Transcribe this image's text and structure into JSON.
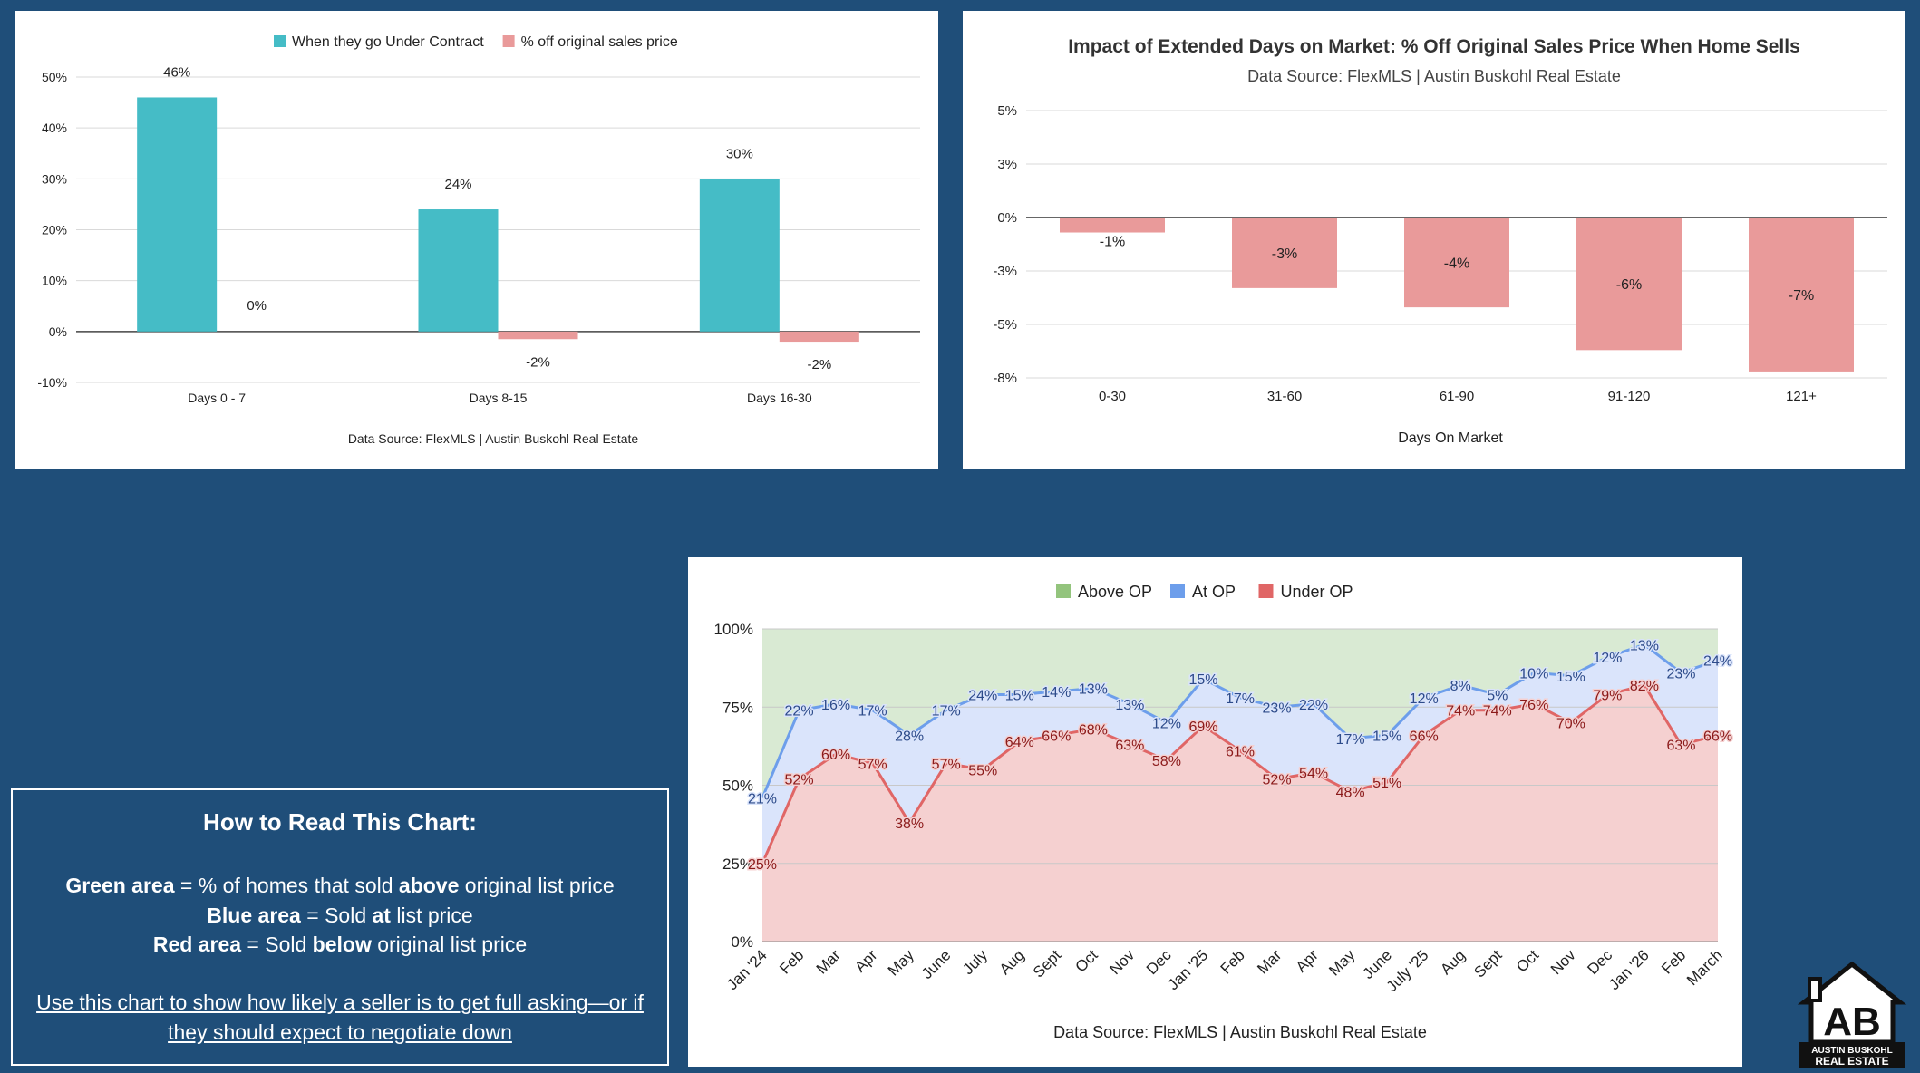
{
  "chart_data": [
    {
      "type": "bar",
      "title": "",
      "legend": [
        "When they go Under Contract",
        "% off original sales price"
      ],
      "legend_position": "top",
      "categories": [
        "Days 0 - 7",
        "Days 8-15",
        "Days 16-30"
      ],
      "series": [
        {
          "name": "When they go Under Contract",
          "values": [
            46,
            24,
            30
          ],
          "labels": [
            "46%",
            "24%",
            "30%"
          ],
          "color": "#45bcc6"
        },
        {
          "name": "% off original sales price",
          "values": [
            0,
            -1.5,
            -2
          ],
          "labels": [
            "0%",
            "-2%",
            "-2%"
          ],
          "color": "#e99a9a"
        }
      ],
      "yticks": [
        "50%",
        "40%",
        "30%",
        "20%",
        "10%",
        "0%",
        "-10%"
      ],
      "ylim": [
        -10,
        50
      ],
      "grid": true,
      "source": "Data Source: FlexMLS | Austin Buskohl Real Estate"
    },
    {
      "type": "bar",
      "title": "Impact of Extended Days on Market: % Off Original Sales Price When Home Sells",
      "subtitle": "Data Source: FlexMLS | Austin Buskohl Real Estate",
      "xlabel": "Days On Market",
      "categories": [
        "0-30",
        "31-60",
        "61-90",
        "91-120",
        "121+"
      ],
      "values": [
        -0.7,
        -3.3,
        -4.2,
        -6.2,
        -7.2
      ],
      "labels": [
        "-1%",
        "-3%",
        "-4%",
        "-6%",
        "-7%"
      ],
      "color": "#e99a9a",
      "yticks": [
        "5%",
        "3%",
        "0%",
        "-3%",
        "-5%",
        "-8%"
      ],
      "ylim": [
        -7.5,
        5
      ],
      "grid": true
    },
    {
      "type": "area",
      "stacked": true,
      "legend": [
        "Above OP",
        "At OP",
        "Under OP"
      ],
      "legend_position": "top",
      "colors": {
        "above": "#93c47d",
        "at": "#6d9eeb",
        "under": "#e06666"
      },
      "x": [
        "Jan '24",
        "Feb",
        "Mar",
        "Apr",
        "May",
        "June",
        "July",
        "Aug",
        "Sept",
        "Oct",
        "Nov",
        "Dec",
        "Jan '25",
        "Feb",
        "Mar",
        "Apr",
        "May",
        "June",
        "July '25",
        "Aug",
        "Sept",
        "Oct",
        "Nov",
        "Dec",
        "Jan '26",
        "Feb",
        "March"
      ],
      "series": [
        {
          "name": "Under OP",
          "values": [
            25,
            52,
            60,
            57,
            38,
            57,
            55,
            64,
            66,
            68,
            63,
            58,
            69,
            61,
            52,
            54,
            48,
            51,
            66,
            74,
            74,
            76,
            70,
            79,
            82,
            63,
            66
          ]
        },
        {
          "name": "At OP",
          "values": [
            21,
            22,
            16,
            17,
            28,
            17,
            24,
            15,
            14,
            13,
            13,
            12,
            15,
            17,
            23,
            22,
            17,
            15,
            12,
            8,
            5,
            10,
            15,
            12,
            13,
            23,
            24
          ]
        }
      ],
      "yticks": [
        "100%",
        "75%",
        "50%",
        "25%",
        "0%"
      ],
      "ylim": [
        0,
        100
      ],
      "grid": true,
      "source": "Data Source: FlexMLS | Austin Buskohl Real Estate"
    }
  ],
  "howto": {
    "title": "How to Read This Chart:",
    "green_label": "Green area",
    "green_pre": " = % of homes that sold ",
    "green_bold": "above",
    "green_post": " original list price",
    "blue_label": "Blue area",
    "blue_pre": " = Sold ",
    "blue_bold": "at",
    "blue_post": " list price",
    "red_label": "Red area",
    "red_pre": " = Sold ",
    "red_bold": "below",
    "red_post": " original list price",
    "cta": "Use this chart to show how likely a seller is to get full asking—or if they should expect to negotiate down"
  },
  "logo": {
    "line1": "AUSTIN BUSKOHL",
    "line2": "REAL ESTATE",
    "mark": "AB"
  }
}
